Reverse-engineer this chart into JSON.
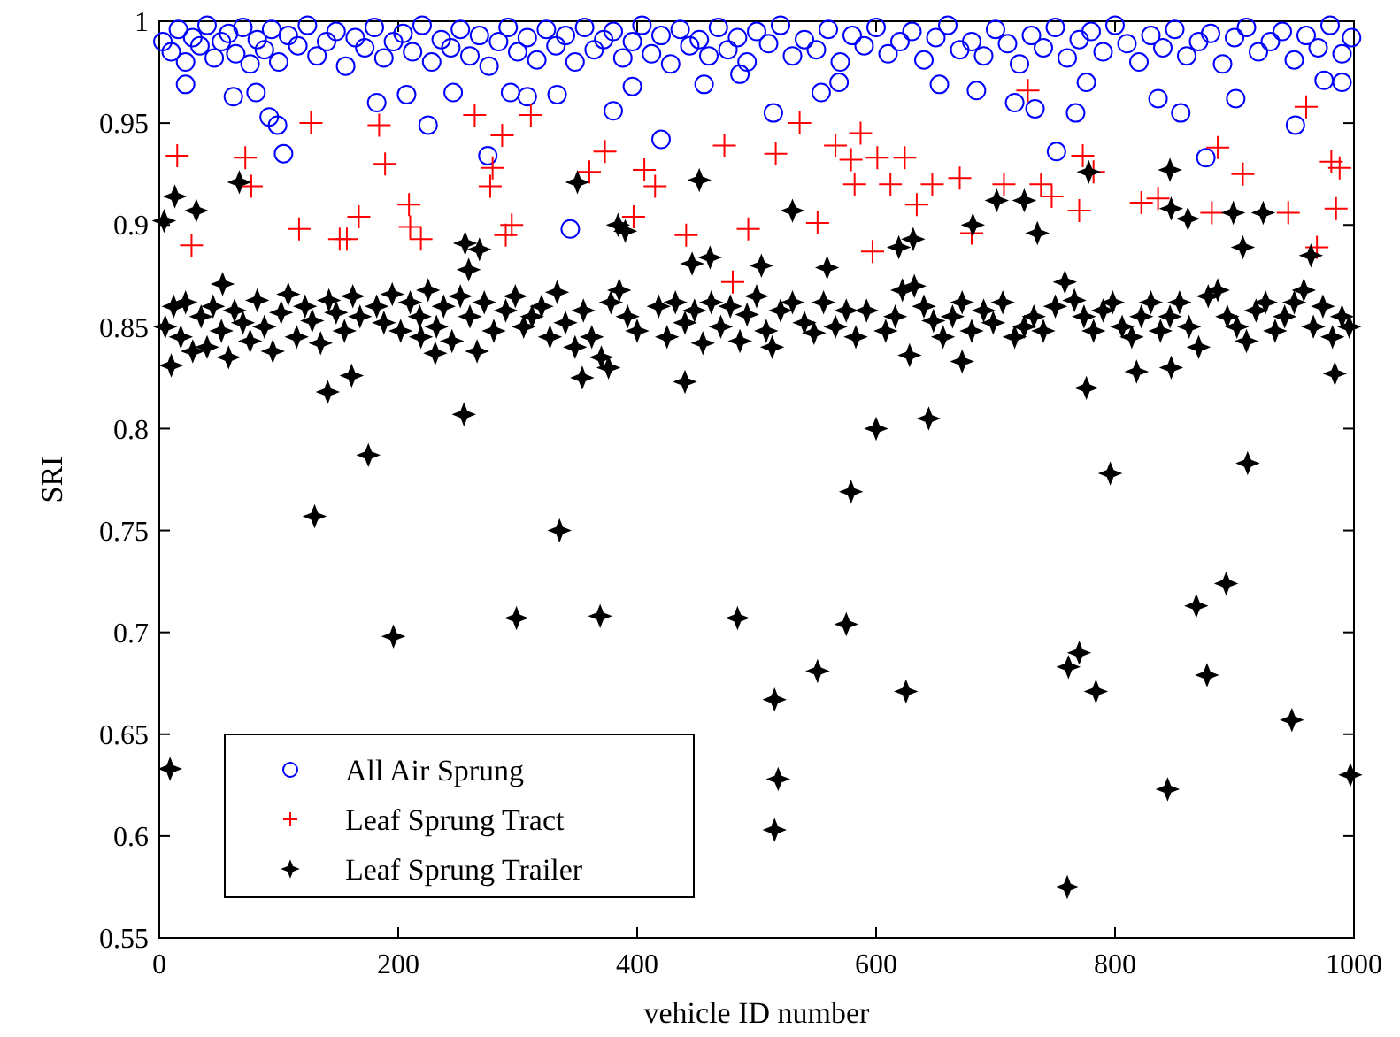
{
  "chart_data": {
    "type": "scatter",
    "xlabel": "vehicle ID number",
    "ylabel": "SRI",
    "xlim": [
      0,
      1000
    ],
    "ylim": [
      0.55,
      1
    ],
    "xticks": [
      0,
      200,
      400,
      600,
      800,
      1000
    ],
    "yticks": [
      {
        "value": 0.55,
        "label": "0.55"
      },
      {
        "value": 0.6,
        "label": "0.6"
      },
      {
        "value": 0.65,
        "label": "0.65"
      },
      {
        "value": 0.7,
        "label": "0.7"
      },
      {
        "value": 0.75,
        "label": "0.75"
      },
      {
        "value": 0.8,
        "label": "0.8"
      },
      {
        "value": 0.85,
        "label": "0.85"
      },
      {
        "value": 0.9,
        "label": "0.9"
      },
      {
        "value": 0.95,
        "label": "0.95"
      },
      {
        "value": 1,
        "label": "1"
      }
    ],
    "grid": false,
    "legend": "bottom left",
    "series": [
      {
        "name": "All Air Sprung",
        "color": "#0000ff",
        "marker": "circle",
        "x": [
          3,
          10,
          16,
          22,
          28,
          34,
          40,
          46,
          52,
          58,
          64,
          70,
          76,
          82,
          88,
          94,
          100,
          108,
          116,
          124,
          132,
          140,
          148,
          156,
          164,
          172,
          180,
          188,
          196,
          204,
          212,
          220,
          228,
          236,
          244,
          252,
          260,
          268,
          276,
          284,
          292,
          300,
          308,
          316,
          324,
          332,
          340,
          348,
          356,
          364,
          372,
          380,
          388,
          396,
          404,
          412,
          420,
          428,
          436,
          444,
          452,
          460,
          468,
          476,
          484,
          492,
          500,
          510,
          520,
          530,
          540,
          550,
          560,
          570,
          580,
          590,
          600,
          610,
          620,
          630,
          640,
          650,
          660,
          670,
          680,
          690,
          700,
          710,
          720,
          730,
          740,
          750,
          760,
          770,
          780,
          790,
          800,
          810,
          820,
          830,
          840,
          850,
          860,
          870,
          880,
          890,
          900,
          910,
          920,
          930,
          940,
          950,
          960,
          970,
          980,
          990,
          998,
          22,
          62,
          81,
          92,
          99,
          104,
          182,
          207,
          225,
          246,
          275,
          294,
          308,
          333,
          344,
          380,
          396,
          420,
          456,
          486,
          514,
          554,
          569,
          653,
          684,
          716,
          733,
          751,
          767,
          776,
          836,
          855,
          876,
          901,
          951,
          975,
          990
        ],
        "values": [
          0.99,
          0.985,
          0.996,
          0.98,
          0.992,
          0.988,
          0.998,
          0.982,
          0.99,
          0.994,
          0.984,
          0.997,
          0.979,
          0.991,
          0.986,
          0.996,
          0.98,
          0.993,
          0.988,
          0.998,
          0.983,
          0.99,
          0.995,
          0.978,
          0.992,
          0.987,
          0.997,
          0.982,
          0.99,
          0.994,
          0.985,
          0.998,
          0.98,
          0.991,
          0.987,
          0.996,
          0.983,
          0.993,
          0.978,
          0.99,
          0.997,
          0.985,
          0.992,
          0.981,
          0.996,
          0.988,
          0.993,
          0.98,
          0.997,
          0.986,
          0.991,
          0.995,
          0.982,
          0.99,
          0.998,
          0.984,
          0.993,
          0.979,
          0.996,
          0.988,
          0.991,
          0.983,
          0.997,
          0.986,
          0.992,
          0.98,
          0.995,
          0.989,
          0.998,
          0.983,
          0.991,
          0.986,
          0.996,
          0.98,
          0.993,
          0.988,
          0.997,
          0.984,
          0.99,
          0.995,
          0.981,
          0.992,
          0.998,
          0.986,
          0.99,
          0.983,
          0.996,
          0.989,
          0.979,
          0.993,
          0.987,
          0.997,
          0.982,
          0.991,
          0.995,
          0.985,
          0.998,
          0.989,
          0.98,
          0.993,
          0.987,
          0.996,
          0.983,
          0.99,
          0.994,
          0.979,
          0.992,
          0.997,
          0.985,
          0.99,
          0.995,
          0.981,
          0.993,
          0.987,
          0.998,
          0.984,
          0.992,
          0.969,
          0.963,
          0.965,
          0.953,
          0.949,
          0.935,
          0.96,
          0.964,
          0.949,
          0.965,
          0.934,
          0.965,
          0.963,
          0.964,
          0.898,
          0.956,
          0.968,
          0.942,
          0.969,
          0.974,
          0.955,
          0.965,
          0.97,
          0.969,
          0.966,
          0.96,
          0.957,
          0.936,
          0.955,
          0.97,
          0.962,
          0.955,
          0.933,
          0.962,
          0.949,
          0.971,
          0.97
        ]
      },
      {
        "name": "Leaf Sprung Tract",
        "color": "#ff0000",
        "marker": "cross",
        "x": [
          15,
          72,
          77,
          27,
          127,
          184,
          189,
          117,
          151,
          157,
          167,
          209,
          210,
          219,
          264,
          311,
          287,
          279,
          277,
          295,
          290,
          373,
          360,
          406,
          415,
          397,
          473,
          441,
          493,
          480,
          536,
          516,
          587,
          566,
          601,
          624,
          579,
          582,
          612,
          647,
          670,
          707,
          634,
          551,
          738,
          747,
          773,
          782,
          770,
          727,
          680,
          822,
          836,
          886,
          907,
          881,
          945,
          960,
          981,
          988,
          985,
          597,
          969
        ],
        "values": [
          0.934,
          0.933,
          0.919,
          0.89,
          0.95,
          0.949,
          0.93,
          0.898,
          0.893,
          0.893,
          0.904,
          0.91,
          0.899,
          0.893,
          0.954,
          0.954,
          0.944,
          0.928,
          0.919,
          0.9,
          0.895,
          0.936,
          0.926,
          0.927,
          0.919,
          0.904,
          0.939,
          0.895,
          0.898,
          0.872,
          0.95,
          0.935,
          0.945,
          0.939,
          0.933,
          0.933,
          0.932,
          0.92,
          0.92,
          0.92,
          0.923,
          0.92,
          0.91,
          0.901,
          0.92,
          0.914,
          0.934,
          0.926,
          0.907,
          0.966,
          0.896,
          0.911,
          0.913,
          0.938,
          0.925,
          0.906,
          0.906,
          0.958,
          0.931,
          0.928,
          0.908,
          0.887,
          0.889
        ]
      },
      {
        "name": "Leaf Sprung Trailer",
        "color": "#000000",
        "marker": "star",
        "x": [
          5,
          12,
          18,
          22,
          28,
          35,
          40,
          45,
          52,
          58,
          63,
          70,
          76,
          82,
          88,
          95,
          102,
          108,
          115,
          122,
          128,
          135,
          142,
          148,
          155,
          162,
          168,
          182,
          188,
          195,
          202,
          210,
          218,
          225,
          232,
          238,
          245,
          252,
          260,
          266,
          272,
          280,
          290,
          298,
          305,
          312,
          320,
          327,
          333,
          340,
          348,
          355,
          362,
          370,
          378,
          385,
          392,
          400,
          418,
          425,
          432,
          440,
          448,
          455,
          462,
          470,
          478,
          486,
          492,
          500,
          508,
          520,
          530,
          540,
          548,
          556,
          566,
          575,
          583,
          592,
          608,
          616,
          622,
          632,
          640,
          648,
          656,
          664,
          672,
          680,
          690,
          698,
          706,
          716,
          724,
          732,
          740,
          750,
          758,
          766,
          774,
          782,
          790,
          798,
          806,
          814,
          822,
          830,
          838,
          846,
          854,
          862,
          870,
          878,
          886,
          894,
          902,
          910,
          918,
          926,
          934,
          942,
          950,
          958,
          966,
          974,
          982,
          990,
          996,
          175,
          130,
          196,
          299,
          335,
          369,
          484,
          9,
          579,
          575,
          551,
          515,
          518,
          515,
          625,
          796,
          911,
          761,
          770,
          784,
          868,
          893,
          877,
          948,
          844,
          760,
          997,
          141,
          161,
          255,
          10,
          354,
          376,
          440,
          231,
          219,
          600,
          644,
          776,
          818,
          847,
          984,
          672,
          628,
          513,
          4,
          13,
          31,
          67,
          350,
          452,
          384,
          390,
          256,
          268,
          530,
          701,
          724,
          681,
          735,
          778,
          846,
          847,
          861,
          899,
          924,
          619,
          631,
          907,
          259,
          446,
          461,
          53,
          504,
          559,
          964
        ],
        "values": [
          0.85,
          0.86,
          0.845,
          0.862,
          0.838,
          0.855,
          0.84,
          0.86,
          0.848,
          0.835,
          0.858,
          0.852,
          0.843,
          0.863,
          0.85,
          0.838,
          0.857,
          0.866,
          0.845,
          0.86,
          0.853,
          0.842,
          0.863,
          0.857,
          0.848,
          0.865,
          0.855,
          0.86,
          0.852,
          0.866,
          0.848,
          0.862,
          0.855,
          0.868,
          0.85,
          0.86,
          0.843,
          0.865,
          0.855,
          0.838,
          0.862,
          0.848,
          0.858,
          0.865,
          0.85,
          0.855,
          0.86,
          0.845,
          0.867,
          0.852,
          0.84,
          0.858,
          0.845,
          0.835,
          0.862,
          0.868,
          0.855,
          0.848,
          0.86,
          0.845,
          0.862,
          0.852,
          0.858,
          0.842,
          0.862,
          0.85,
          0.86,
          0.843,
          0.856,
          0.865,
          0.848,
          0.858,
          0.862,
          0.852,
          0.847,
          0.862,
          0.85,
          0.858,
          0.845,
          0.858,
          0.848,
          0.855,
          0.868,
          0.87,
          0.86,
          0.853,
          0.845,
          0.855,
          0.862,
          0.848,
          0.858,
          0.852,
          0.862,
          0.845,
          0.85,
          0.855,
          0.848,
          0.86,
          0.872,
          0.863,
          0.855,
          0.848,
          0.858,
          0.862,
          0.85,
          0.845,
          0.855,
          0.862,
          0.848,
          0.855,
          0.862,
          0.85,
          0.84,
          0.865,
          0.868,
          0.855,
          0.85,
          0.843,
          0.858,
          0.862,
          0.848,
          0.855,
          0.862,
          0.868,
          0.85,
          0.86,
          0.845,
          0.855,
          0.85,
          0.787,
          0.757,
          0.698,
          0.707,
          0.75,
          0.708,
          0.707,
          0.633,
          0.769,
          0.704,
          0.681,
          0.667,
          0.628,
          0.603,
          0.671,
          0.778,
          0.783,
          0.683,
          0.69,
          0.671,
          0.713,
          0.724,
          0.679,
          0.657,
          0.623,
          0.575,
          0.63,
          0.818,
          0.826,
          0.807,
          0.831,
          0.825,
          0.83,
          0.823,
          0.837,
          0.845,
          0.8,
          0.805,
          0.82,
          0.828,
          0.83,
          0.827,
          0.833,
          0.836,
          0.84,
          0.902,
          0.914,
          0.907,
          0.921,
          0.921,
          0.922,
          0.9,
          0.897,
          0.891,
          0.888,
          0.907,
          0.912,
          0.912,
          0.9,
          0.896,
          0.926,
          0.927,
          0.908,
          0.903,
          0.906,
          0.906,
          0.889,
          0.893,
          0.889,
          0.878,
          0.881,
          0.884,
          0.871,
          0.88,
          0.879,
          0.885
        ]
      }
    ]
  }
}
